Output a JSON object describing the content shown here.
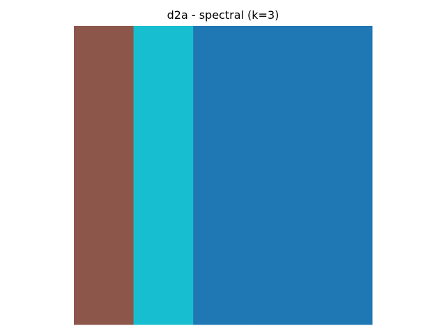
{
  "chart_data": {
    "type": "heatmap",
    "title": "d2a - spectral (k=3)",
    "axes_visible": false,
    "grid": false,
    "colormap": "tab10",
    "value_range": [
      0,
      2
    ],
    "matrix": [
      [
        1,
        2,
        0,
        0,
        0
      ]
    ],
    "label_colors": {
      "0": "#1f77b4",
      "1": "#8c564b",
      "2": "#17becf"
    }
  }
}
